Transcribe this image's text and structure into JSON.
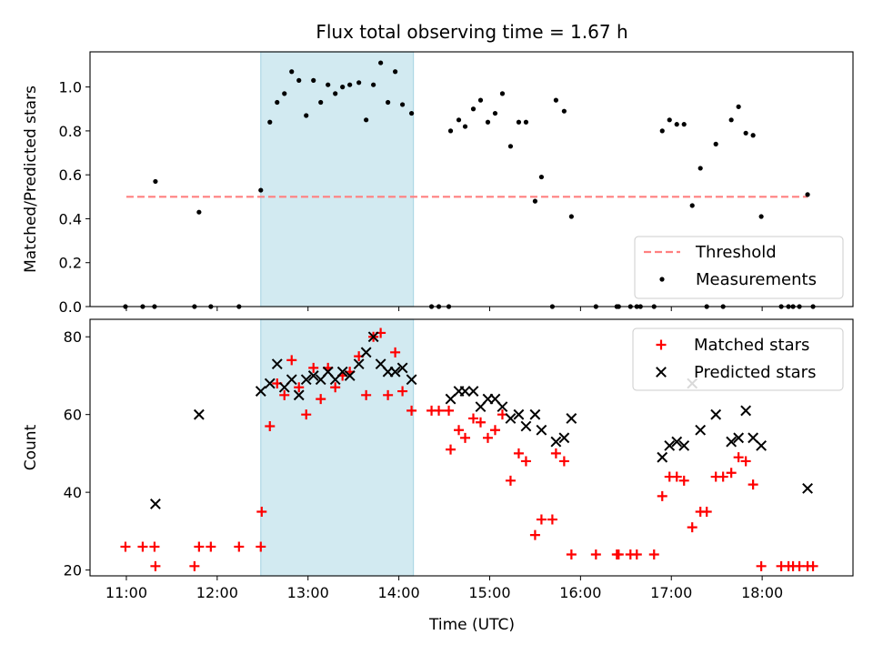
{
  "chart_data": {
    "title": "Flux total observing time = 1.67 h",
    "xlabel": "Time (UTC)",
    "xlim_hours": [
      10.6,
      19.0
    ],
    "xticks": [
      {
        "h": 11,
        "label": "11:00"
      },
      {
        "h": 12,
        "label": "12:00"
      },
      {
        "h": 13,
        "label": "13:00"
      },
      {
        "h": 14,
        "label": "14:00"
      },
      {
        "h": 15,
        "label": "15:00"
      },
      {
        "h": 16,
        "label": "16:00"
      },
      {
        "h": 17,
        "label": "17:00"
      },
      {
        "h": 18,
        "label": "18:00"
      }
    ],
    "highlight_span_hours": [
      12.48,
      14.16
    ],
    "highlight_color": "#add8e6",
    "panels": [
      {
        "type": "scatter",
        "ylabel": "Matched/Predicted stars",
        "ylim": [
          0,
          1.16
        ],
        "yticks": [
          0.0,
          0.2,
          0.4,
          0.6,
          0.8,
          1.0
        ],
        "ytick_labels": [
          "0.0",
          "0.2",
          "0.4",
          "0.6",
          "0.8",
          "1.0"
        ],
        "threshold": {
          "value": 0.5,
          "x_range": [
            11.0,
            18.5
          ],
          "color": "#ff8080",
          "label": "Threshold"
        },
        "legend": {
          "position": "lower-right",
          "entries": [
            "Threshold",
            "Measurements"
          ]
        },
        "series": [
          {
            "name": "Measurements",
            "marker": "dot",
            "color": "#000000",
            "points": [
              [
                10.99,
                0
              ],
              [
                11.18,
                0
              ],
              [
                11.31,
                0
              ],
              [
                11.32,
                0.57
              ],
              [
                11.75,
                0
              ],
              [
                11.8,
                0.43
              ],
              [
                11.93,
                0
              ],
              [
                12.24,
                0
              ],
              [
                12.48,
                0.53
              ],
              [
                12.58,
                0.84
              ],
              [
                12.66,
                0.93
              ],
              [
                12.74,
                0.97
              ],
              [
                12.82,
                1.07
              ],
              [
                12.9,
                1.03
              ],
              [
                12.98,
                0.87
              ],
              [
                13.06,
                1.03
              ],
              [
                13.14,
                0.93
              ],
              [
                13.22,
                1.01
              ],
              [
                13.3,
                0.97
              ],
              [
                13.38,
                1.0
              ],
              [
                13.46,
                1.01
              ],
              [
                13.56,
                1.02
              ],
              [
                13.64,
                0.85
              ],
              [
                13.72,
                1.01
              ],
              [
                13.8,
                1.11
              ],
              [
                13.88,
                0.93
              ],
              [
                13.96,
                1.07
              ],
              [
                14.04,
                0.92
              ],
              [
                14.14,
                0.88
              ],
              [
                14.36,
                0
              ],
              [
                14.44,
                0
              ],
              [
                14.55,
                0
              ],
              [
                14.57,
                0.8
              ],
              [
                14.66,
                0.85
              ],
              [
                14.73,
                0.82
              ],
              [
                14.82,
                0.9
              ],
              [
                14.9,
                0.94
              ],
              [
                14.98,
                0.84
              ],
              [
                15.06,
                0.88
              ],
              [
                15.14,
                0.97
              ],
              [
                15.23,
                0.73
              ],
              [
                15.32,
                0.84
              ],
              [
                15.4,
                0.84
              ],
              [
                15.5,
                0.48
              ],
              [
                15.57,
                0.59
              ],
              [
                15.69,
                0
              ],
              [
                15.73,
                0.94
              ],
              [
                15.82,
                0.89
              ],
              [
                15.9,
                0.41
              ],
              [
                16.17,
                0
              ],
              [
                16.4,
                0
              ],
              [
                16.42,
                0
              ],
              [
                16.55,
                0
              ],
              [
                16.62,
                0
              ],
              [
                16.66,
                0
              ],
              [
                16.81,
                0
              ],
              [
                16.9,
                0.8
              ],
              [
                16.98,
                0.85
              ],
              [
                17.06,
                0.83
              ],
              [
                17.14,
                0.83
              ],
              [
                17.23,
                0.46
              ],
              [
                17.32,
                0.63
              ],
              [
                17.39,
                0
              ],
              [
                17.49,
                0.74
              ],
              [
                17.57,
                0
              ],
              [
                17.66,
                0.85
              ],
              [
                17.74,
                0.91
              ],
              [
                17.82,
                0.79
              ],
              [
                17.9,
                0.78
              ],
              [
                17.99,
                0.41
              ],
              [
                18.21,
                0
              ],
              [
                18.29,
                0
              ],
              [
                18.34,
                0
              ],
              [
                18.41,
                0
              ],
              [
                18.5,
                0.51
              ],
              [
                18.56,
                0
              ]
            ]
          }
        ]
      },
      {
        "type": "scatter",
        "ylabel": "Count",
        "ylim": [
          18.5,
          84.5
        ],
        "yticks": [
          20,
          40,
          60,
          80
        ],
        "ytick_labels": [
          "20",
          "40",
          "60",
          "80"
        ],
        "legend": {
          "position": "upper-right",
          "entries": [
            "Matched stars",
            "Predicted stars"
          ]
        },
        "series": [
          {
            "name": "Matched stars",
            "marker": "plus",
            "color": "#ff0000",
            "points": [
              [
                10.99,
                26
              ],
              [
                11.18,
                26
              ],
              [
                11.31,
                26
              ],
              [
                11.32,
                21
              ],
              [
                11.75,
                21
              ],
              [
                11.8,
                26
              ],
              [
                11.93,
                26
              ],
              [
                12.24,
                26
              ],
              [
                12.48,
                26
              ],
              [
                12.49,
                35
              ],
              [
                12.58,
                57
              ],
              [
                12.66,
                68
              ],
              [
                12.74,
                65
              ],
              [
                12.82,
                74
              ],
              [
                12.9,
                67
              ],
              [
                12.98,
                60
              ],
              [
                13.06,
                72
              ],
              [
                13.14,
                64
              ],
              [
                13.22,
                72
              ],
              [
                13.3,
                67
              ],
              [
                13.38,
                70
              ],
              [
                13.46,
                71
              ],
              [
                13.56,
                75
              ],
              [
                13.64,
                65
              ],
              [
                13.72,
                80
              ],
              [
                13.8,
                81
              ],
              [
                13.88,
                65
              ],
              [
                13.96,
                76
              ],
              [
                14.04,
                66
              ],
              [
                14.14,
                61
              ],
              [
                14.36,
                61
              ],
              [
                14.44,
                61
              ],
              [
                14.55,
                61
              ],
              [
                14.57,
                51
              ],
              [
                14.66,
                56
              ],
              [
                14.73,
                54
              ],
              [
                14.82,
                59
              ],
              [
                14.9,
                58
              ],
              [
                14.98,
                54
              ],
              [
                15.06,
                56
              ],
              [
                15.14,
                60
              ],
              [
                15.23,
                43
              ],
              [
                15.32,
                50
              ],
              [
                15.4,
                48
              ],
              [
                15.5,
                29
              ],
              [
                15.57,
                33
              ],
              [
                15.69,
                33
              ],
              [
                15.73,
                50
              ],
              [
                15.82,
                48
              ],
              [
                15.9,
                24
              ],
              [
                16.17,
                24
              ],
              [
                16.4,
                24
              ],
              [
                16.42,
                24
              ],
              [
                16.55,
                24
              ],
              [
                16.62,
                24
              ],
              [
                16.81,
                24
              ],
              [
                16.9,
                39
              ],
              [
                16.98,
                44
              ],
              [
                17.06,
                44
              ],
              [
                17.14,
                43
              ],
              [
                17.23,
                31
              ],
              [
                17.32,
                35
              ],
              [
                17.39,
                35
              ],
              [
                17.49,
                44
              ],
              [
                17.57,
                44
              ],
              [
                17.66,
                45
              ],
              [
                17.74,
                49
              ],
              [
                17.82,
                48
              ],
              [
                17.9,
                42
              ],
              [
                17.99,
                21
              ],
              [
                18.21,
                21
              ],
              [
                18.29,
                21
              ],
              [
                18.34,
                21
              ],
              [
                18.41,
                21
              ],
              [
                18.5,
                21
              ],
              [
                18.56,
                21
              ]
            ]
          },
          {
            "name": "Predicted stars",
            "marker": "x",
            "color": "#000000",
            "points": [
              [
                11.32,
                37
              ],
              [
                11.8,
                60
              ],
              [
                12.48,
                66
              ],
              [
                12.58,
                68
              ],
              [
                12.66,
                73
              ],
              [
                12.74,
                67
              ],
              [
                12.82,
                69
              ],
              [
                12.9,
                65
              ],
              [
                12.98,
                69
              ],
              [
                13.06,
                70
              ],
              [
                13.14,
                69
              ],
              [
                13.22,
                71
              ],
              [
                13.3,
                69
              ],
              [
                13.38,
                71
              ],
              [
                13.46,
                70
              ],
              [
                13.56,
                73
              ],
              [
                13.64,
                76
              ],
              [
                13.72,
                80
              ],
              [
                13.8,
                73
              ],
              [
                13.88,
                71
              ],
              [
                13.96,
                71
              ],
              [
                14.04,
                72
              ],
              [
                14.14,
                69
              ],
              [
                14.57,
                64
              ],
              [
                14.66,
                66
              ],
              [
                14.73,
                66
              ],
              [
                14.82,
                66
              ],
              [
                14.9,
                62
              ],
              [
                14.98,
                64
              ],
              [
                15.06,
                64
              ],
              [
                15.14,
                62
              ],
              [
                15.23,
                59
              ],
              [
                15.32,
                60
              ],
              [
                15.4,
                57
              ],
              [
                15.5,
                60
              ],
              [
                15.57,
                56
              ],
              [
                15.73,
                53
              ],
              [
                15.82,
                54
              ],
              [
                15.9,
                59
              ],
              [
                16.9,
                49
              ],
              [
                16.98,
                52
              ],
              [
                17.06,
                53
              ],
              [
                17.14,
                52
              ],
              [
                17.23,
                68
              ],
              [
                17.32,
                56
              ],
              [
                17.49,
                60
              ],
              [
                17.66,
                53
              ],
              [
                17.74,
                54
              ],
              [
                17.82,
                61
              ],
              [
                17.9,
                54
              ],
              [
                17.99,
                52
              ],
              [
                18.5,
                41
              ]
            ]
          }
        ]
      }
    ]
  }
}
